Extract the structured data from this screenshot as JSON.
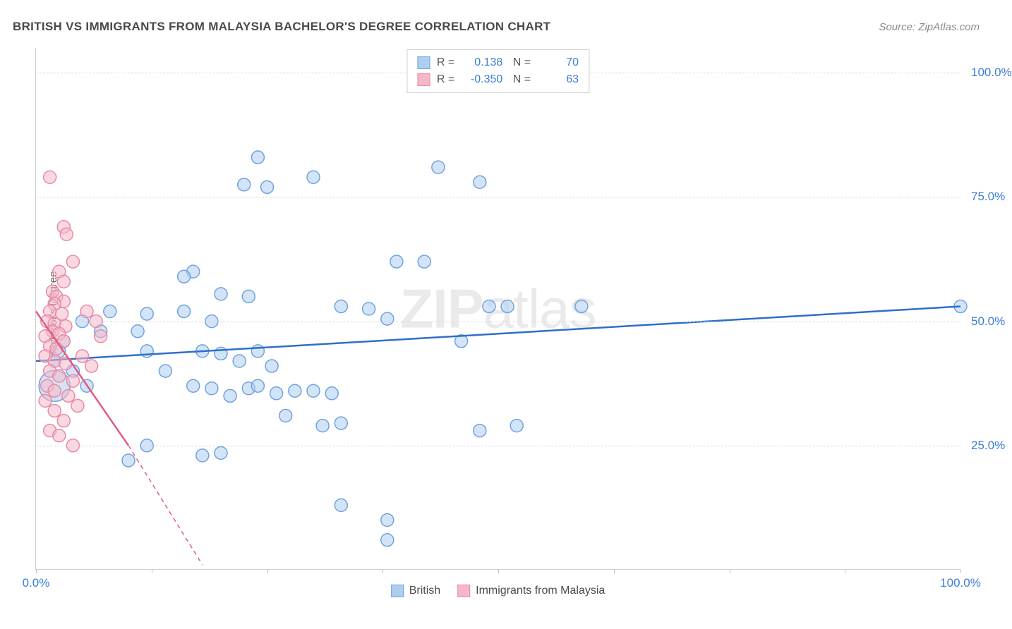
{
  "title": "BRITISH VS IMMIGRANTS FROM MALAYSIA BACHELOR'S DEGREE CORRELATION CHART",
  "source": "Source: ZipAtlas.com",
  "ylabel": "Bachelor's Degree",
  "watermark": "ZIPatlas",
  "chart": {
    "type": "scatter",
    "xlim": [
      0,
      100
    ],
    "ylim": [
      0,
      105
    ],
    "ytick_positions": [
      25,
      50,
      75,
      100
    ],
    "ytick_labels": [
      "25.0%",
      "50.0%",
      "75.0%",
      "100.0%"
    ],
    "xtick_positions": [
      0,
      12.5,
      25,
      37.5,
      50,
      62.5,
      75,
      87.5,
      100
    ],
    "xtick_labels": {
      "0": "0.0%",
      "100": "100.0%"
    },
    "grid_color": "#d8d8d8",
    "background_color": "#ffffff",
    "series": [
      {
        "name": "British",
        "color_fill": "#aecdf0",
        "color_stroke": "#6fa3de",
        "fill_opacity": 0.55,
        "marker_radius": 9,
        "trend": {
          "x1": 0,
          "y1": 42,
          "x2": 100,
          "y2": 53,
          "color": "#2f6fc9",
          "width": 2.5,
          "dash": "none",
          "extrapolate_dash": "5,4"
        },
        "stats": {
          "R": "0.138",
          "N": "70"
        },
        "points": [
          {
            "x": 24,
            "y": 83
          },
          {
            "x": 43.5,
            "y": 81
          },
          {
            "x": 48,
            "y": 78
          },
          {
            "x": 30,
            "y": 79
          },
          {
            "x": 22.5,
            "y": 77.5
          },
          {
            "x": 25,
            "y": 77
          },
          {
            "x": 39,
            "y": 62
          },
          {
            "x": 42,
            "y": 62
          },
          {
            "x": 17,
            "y": 60
          },
          {
            "x": 20,
            "y": 55.5
          },
          {
            "x": 23,
            "y": 55
          },
          {
            "x": 16,
            "y": 59
          },
          {
            "x": 33,
            "y": 53
          },
          {
            "x": 36,
            "y": 52.5
          },
          {
            "x": 38,
            "y": 50.5
          },
          {
            "x": 49,
            "y": 53
          },
          {
            "x": 51,
            "y": 53
          },
          {
            "x": 59,
            "y": 53
          },
          {
            "x": 8,
            "y": 52
          },
          {
            "x": 12,
            "y": 51.5
          },
          {
            "x": 5,
            "y": 50
          },
          {
            "x": 7,
            "y": 48
          },
          {
            "x": 11,
            "y": 48
          },
          {
            "x": 3,
            "y": 46
          },
          {
            "x": 2.5,
            "y": 44
          },
          {
            "x": 2,
            "y": 42
          },
          {
            "x": 4,
            "y": 40
          },
          {
            "x": 18,
            "y": 44
          },
          {
            "x": 20,
            "y": 43.5
          },
          {
            "x": 22,
            "y": 42
          },
          {
            "x": 24,
            "y": 44
          },
          {
            "x": 25.5,
            "y": 41
          },
          {
            "x": 14,
            "y": 40
          },
          {
            "x": 17,
            "y": 37
          },
          {
            "x": 19,
            "y": 36.5
          },
          {
            "x": 21,
            "y": 35
          },
          {
            "x": 23,
            "y": 36.5
          },
          {
            "x": 24,
            "y": 37
          },
          {
            "x": 26,
            "y": 35.5
          },
          {
            "x": 28,
            "y": 36
          },
          {
            "x": 30,
            "y": 36
          },
          {
            "x": 32,
            "y": 35.5
          },
          {
            "x": 27,
            "y": 31
          },
          {
            "x": 31,
            "y": 29
          },
          {
            "x": 33,
            "y": 29.5
          },
          {
            "x": 10,
            "y": 22
          },
          {
            "x": 12,
            "y": 25
          },
          {
            "x": 18,
            "y": 23
          },
          {
            "x": 20,
            "y": 23.5
          },
          {
            "x": 48,
            "y": 28
          },
          {
            "x": 52,
            "y": 29
          },
          {
            "x": 46,
            "y": 46
          },
          {
            "x": 33,
            "y": 13
          },
          {
            "x": 38,
            "y": 10
          },
          {
            "x": 38,
            "y": 6
          },
          {
            "x": 100,
            "y": 53
          },
          {
            "x": 5.5,
            "y": 37
          },
          {
            "x": 16,
            "y": 52
          },
          {
            "x": 19,
            "y": 50
          },
          {
            "x": 12,
            "y": 44
          },
          {
            "x": 2,
            "y": 37,
            "r": 22
          }
        ]
      },
      {
        "name": "Immigrants from Malaysia",
        "color_fill": "#f6b8c9",
        "color_stroke": "#e88aa5",
        "fill_opacity": 0.55,
        "marker_radius": 9,
        "trend": {
          "x1": 0,
          "y1": 52,
          "x2": 10,
          "y2": 25,
          "color": "#e15a84",
          "width": 2.5,
          "dash": "none",
          "extrapolate": {
            "x2": 18,
            "y2": 1,
            "dash": "6,5"
          }
        },
        "stats": {
          "R": "-0.350",
          "N": "63"
        },
        "points": [
          {
            "x": 1.5,
            "y": 79
          },
          {
            "x": 3,
            "y": 69
          },
          {
            "x": 3.3,
            "y": 67.5
          },
          {
            "x": 4,
            "y": 62
          },
          {
            "x": 2.5,
            "y": 60
          },
          {
            "x": 3,
            "y": 58
          },
          {
            "x": 1.8,
            "y": 56
          },
          {
            "x": 2.2,
            "y": 55
          },
          {
            "x": 3,
            "y": 54
          },
          {
            "x": 2,
            "y": 53.5
          },
          {
            "x": 1.5,
            "y": 52
          },
          {
            "x": 2.8,
            "y": 51.5
          },
          {
            "x": 1.2,
            "y": 50
          },
          {
            "x": 2,
            "y": 49.5
          },
          {
            "x": 3.2,
            "y": 49
          },
          {
            "x": 1.8,
            "y": 48
          },
          {
            "x": 1,
            "y": 47
          },
          {
            "x": 2.5,
            "y": 47.5
          },
          {
            "x": 3,
            "y": 46
          },
          {
            "x": 1.5,
            "y": 45
          },
          {
            "x": 2.2,
            "y": 44.5
          },
          {
            "x": 1,
            "y": 43
          },
          {
            "x": 2,
            "y": 42
          },
          {
            "x": 3.2,
            "y": 41.5
          },
          {
            "x": 1.5,
            "y": 40
          },
          {
            "x": 2.5,
            "y": 39
          },
          {
            "x": 4,
            "y": 38
          },
          {
            "x": 1.2,
            "y": 37
          },
          {
            "x": 2,
            "y": 36
          },
          {
            "x": 3.5,
            "y": 35
          },
          {
            "x": 5,
            "y": 43
          },
          {
            "x": 6,
            "y": 41
          },
          {
            "x": 7,
            "y": 47
          },
          {
            "x": 4.5,
            "y": 33
          },
          {
            "x": 2,
            "y": 32
          },
          {
            "x": 3,
            "y": 30
          },
          {
            "x": 1.5,
            "y": 28
          },
          {
            "x": 2.5,
            "y": 27
          },
          {
            "x": 4,
            "y": 25
          },
          {
            "x": 1,
            "y": 34
          },
          {
            "x": 5.5,
            "y": 52
          },
          {
            "x": 6.5,
            "y": 50
          }
        ]
      }
    ]
  },
  "legend_top": [
    {
      "swatch_fill": "#aecdf0",
      "swatch_stroke": "#6fa3de",
      "R": "0.138",
      "N": "70"
    },
    {
      "swatch_fill": "#f6b8c9",
      "swatch_stroke": "#e88aa5",
      "R": "-0.350",
      "N": "63"
    }
  ],
  "legend_bottom": [
    {
      "swatch_fill": "#aecdf0",
      "swatch_stroke": "#6fa3de",
      "label": "British"
    },
    {
      "swatch_fill": "#f6b8c9",
      "swatch_stroke": "#e88aa5",
      "label": "Immigrants from Malaysia"
    }
  ]
}
